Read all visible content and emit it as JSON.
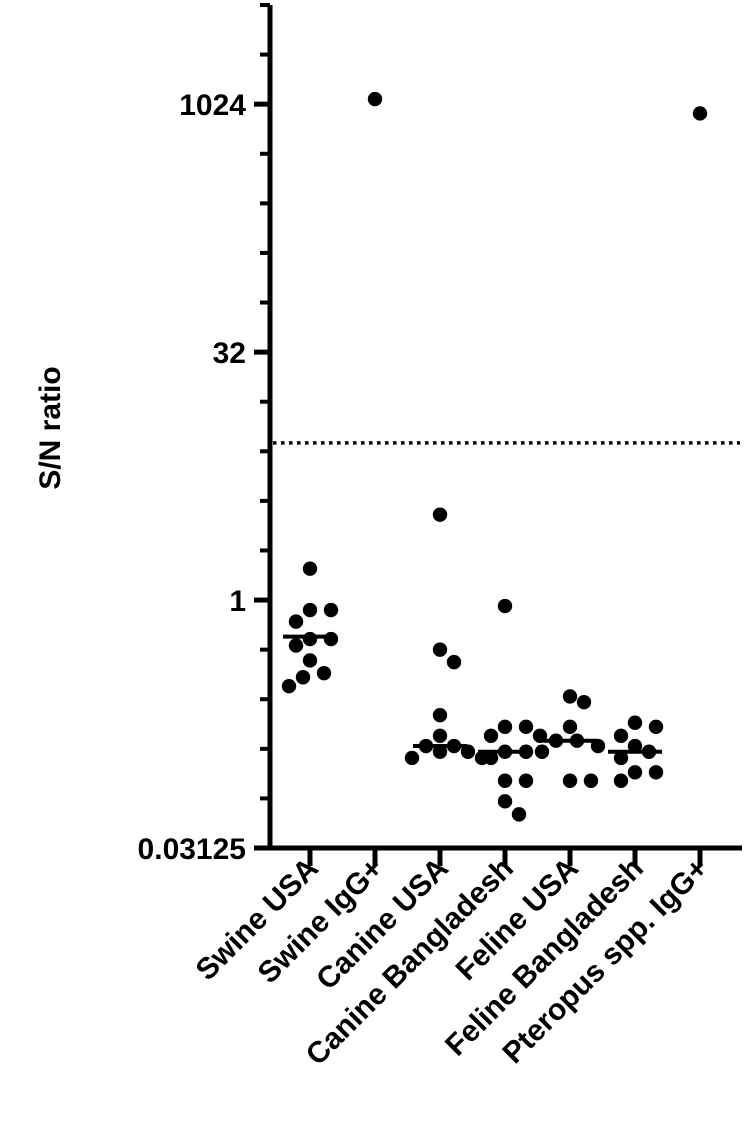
{
  "chart_data": {
    "type": "scatter",
    "ylabel": "S/N ratio",
    "yscale": "log2",
    "ylim": [
      0.03125,
      4096
    ],
    "y_ticks": [
      {
        "value": 0.03125,
        "label": "0.03125"
      },
      {
        "value": 1,
        "label": "1"
      },
      {
        "value": 32,
        "label": "32"
      },
      {
        "value": 1024,
        "label": "1024"
      }
    ],
    "y_minor_ticks": [
      0.0625,
      0.125,
      0.25,
      0.5,
      2,
      4,
      8,
      16,
      64,
      128,
      256,
      512,
      2048,
      4096
    ],
    "threshold": 9,
    "categories": [
      "Swine USA",
      "Swine IgG+",
      "Canine  USA",
      "Canine Bangladesh",
      "Feline USA",
      "Feline Bangladesh",
      "Pteropus spp. IgG+"
    ],
    "groups": [
      {
        "category": "Swine USA",
        "median": 0.6,
        "points": [
          1.55,
          0.87,
          0.87,
          0.74,
          0.58,
          0.58,
          0.53,
          0.43,
          0.36,
          0.34,
          0.3
        ]
      },
      {
        "category": "Swine IgG+",
        "median": null,
        "points": [
          1100
        ]
      },
      {
        "category": "Canine  USA",
        "median": 0.13,
        "points": [
          3.3,
          0.5,
          0.42,
          0.2,
          0.15,
          0.13,
          0.13,
          0.12,
          0.12,
          0.11,
          0.11
        ]
      },
      {
        "category": "Canine Bangladesh",
        "median": 0.12,
        "points": [
          0.92,
          0.17,
          0.17,
          0.15,
          0.15,
          0.12,
          0.12,
          0.11,
          0.08,
          0.08,
          0.06,
          0.05
        ]
      },
      {
        "category": "Feline USA",
        "median": 0.14,
        "points": [
          0.26,
          0.24,
          0.17,
          0.14,
          0.14,
          0.13,
          0.12,
          0.08,
          0.08
        ]
      },
      {
        "category": "Feline Bangladesh",
        "median": 0.12,
        "points": [
          0.18,
          0.17,
          0.15,
          0.13,
          0.12,
          0.11,
          0.09,
          0.09,
          0.08
        ]
      },
      {
        "category": "Pteropus spp. IgG+",
        "median": null,
        "points": [
          900
        ]
      }
    ]
  }
}
